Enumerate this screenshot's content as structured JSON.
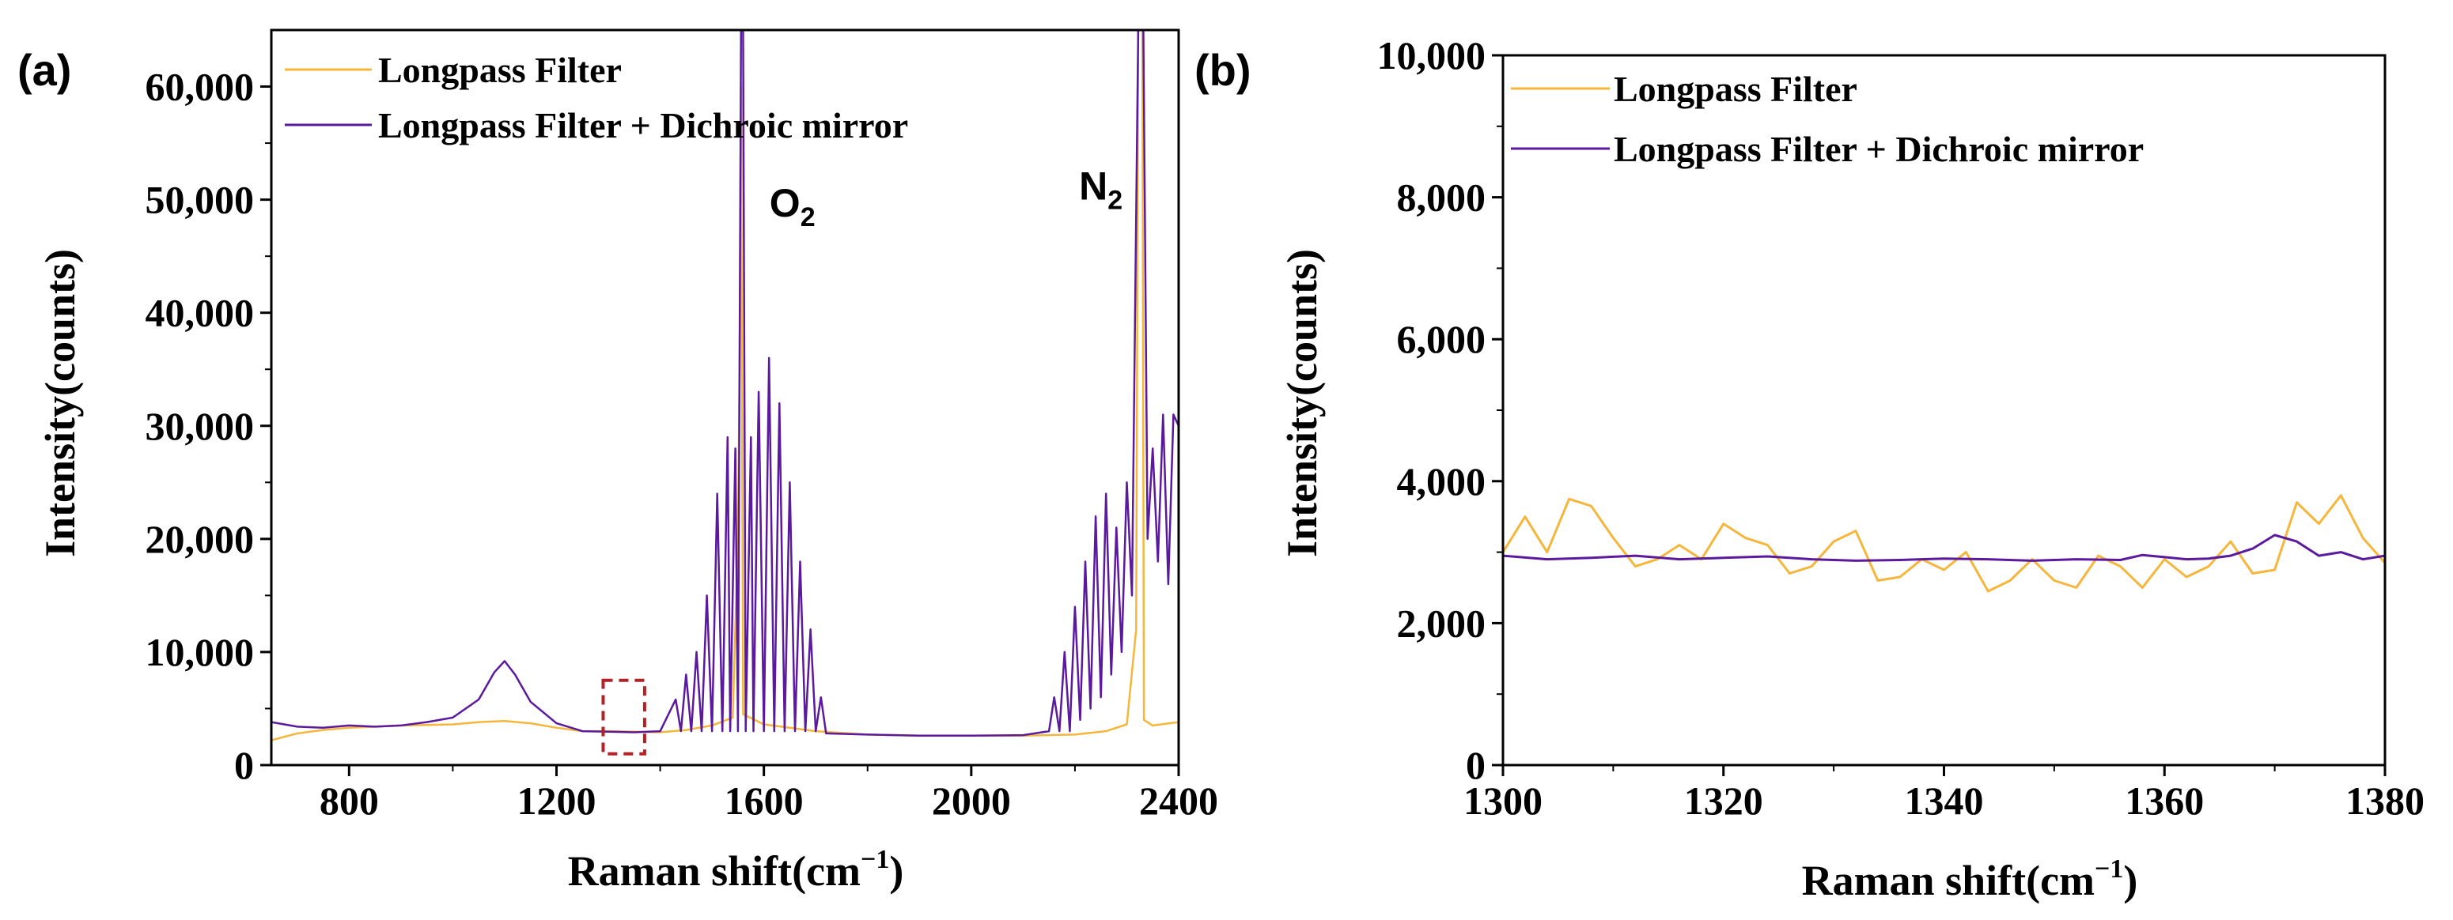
{
  "colors": {
    "longpass": "#F5B63B",
    "dichroic": "#5B1A9E",
    "highlight": "#B32025"
  },
  "chart_data": [
    {
      "type": "line",
      "panel_label": "(a)",
      "xlabel": "Raman shift(cm",
      "xlabel_sup": "−1",
      "xlabel_close": ")",
      "ylabel": "Intensity(counts)",
      "xlim": [
        650,
        2400
      ],
      "ylim": [
        0,
        65000
      ],
      "xticks": [
        800,
        1200,
        1600,
        2000,
        2400
      ],
      "xtick_labels": [
        "800",
        "1200",
        "1600",
        "2000",
        "2400"
      ],
      "yticks": [
        0,
        10000,
        20000,
        30000,
        40000,
        50000,
        60000
      ],
      "ytick_labels": [
        "0",
        "10,000",
        "20,000",
        "30,000",
        "40,000",
        "50,000",
        "60,000"
      ],
      "annotations": [
        {
          "text": "O",
          "sub": "2",
          "x": 1655,
          "y": 48500
        },
        {
          "text": "N",
          "sub": "2",
          "x": 2250,
          "y": 50000
        }
      ],
      "highlight_box": {
        "x0": 1290,
        "x1": 1370,
        "y0": 1000,
        "y1": 7500
      },
      "series": [
        {
          "name": "Longpass Filter",
          "color_key": "longpass",
          "points": [
            [
              650,
              2200
            ],
            [
              700,
              2800
            ],
            [
              750,
              3100
            ],
            [
              800,
              3300
            ],
            [
              850,
              3400
            ],
            [
              900,
              3500
            ],
            [
              950,
              3550
            ],
            [
              1000,
              3600
            ],
            [
              1050,
              3800
            ],
            [
              1100,
              3900
            ],
            [
              1150,
              3700
            ],
            [
              1200,
              3300
            ],
            [
              1250,
              3000
            ],
            [
              1300,
              3000
            ],
            [
              1350,
              2950
            ],
            [
              1400,
              2900
            ],
            [
              1450,
              3100
            ],
            [
              1500,
              3500
            ],
            [
              1540,
              4200
            ],
            [
              1550,
              20000
            ],
            [
              1553,
              35000
            ],
            [
              1556,
              60000
            ],
            [
              1560,
              4500
            ],
            [
              1600,
              3600
            ],
            [
              1650,
              3300
            ],
            [
              1700,
              3000
            ],
            [
              1800,
              2700
            ],
            [
              1900,
              2600
            ],
            [
              2000,
              2600
            ],
            [
              2100,
              2600
            ],
            [
              2200,
              2700
            ],
            [
              2260,
              3000
            ],
            [
              2300,
              3600
            ],
            [
              2318,
              12000
            ],
            [
              2322,
              65000
            ],
            [
              2330,
              65000
            ],
            [
              2333,
              4000
            ],
            [
              2350,
              3500
            ],
            [
              2400,
              3800
            ]
          ]
        },
        {
          "name": "Longpass Filter + Dichroic mirror",
          "color_key": "dichroic",
          "points": [
            [
              650,
              3800
            ],
            [
              700,
              3400
            ],
            [
              750,
              3300
            ],
            [
              800,
              3500
            ],
            [
              850,
              3400
            ],
            [
              900,
              3500
            ],
            [
              950,
              3800
            ],
            [
              1000,
              4200
            ],
            [
              1050,
              5800
            ],
            [
              1080,
              8200
            ],
            [
              1100,
              9200
            ],
            [
              1120,
              8000
            ],
            [
              1150,
              5600
            ],
            [
              1200,
              3700
            ],
            [
              1250,
              3000
            ],
            [
              1300,
              2950
            ],
            [
              1350,
              2900
            ],
            [
              1400,
              3000
            ],
            [
              1430,
              5800
            ],
            [
              1440,
              3000
            ],
            [
              1450,
              8000
            ],
            [
              1460,
              3000
            ],
            [
              1470,
              10000
            ],
            [
              1480,
              3000
            ],
            [
              1490,
              15000
            ],
            [
              1500,
              3000
            ],
            [
              1510,
              24000
            ],
            [
              1520,
              3000
            ],
            [
              1530,
              29000
            ],
            [
              1535,
              3000
            ],
            [
              1545,
              28000
            ],
            [
              1550,
              3000
            ],
            [
              1556,
              65000
            ],
            [
              1560,
              65000
            ],
            [
              1565,
              3000
            ],
            [
              1575,
              29000
            ],
            [
              1580,
              3000
            ],
            [
              1590,
              33000
            ],
            [
              1600,
              3000
            ],
            [
              1610,
              36000
            ],
            [
              1620,
              3000
            ],
            [
              1630,
              32000
            ],
            [
              1640,
              3000
            ],
            [
              1650,
              25000
            ],
            [
              1660,
              3000
            ],
            [
              1670,
              18000
            ],
            [
              1680,
              3000
            ],
            [
              1690,
              12000
            ],
            [
              1700,
              3000
            ],
            [
              1710,
              6000
            ],
            [
              1720,
              2800
            ],
            [
              1800,
              2700
            ],
            [
              1900,
              2600
            ],
            [
              2000,
              2600
            ],
            [
              2100,
              2650
            ],
            [
              2150,
              3000
            ],
            [
              2160,
              6000
            ],
            [
              2170,
              3000
            ],
            [
              2180,
              10000
            ],
            [
              2190,
              3000
            ],
            [
              2200,
              14000
            ],
            [
              2210,
              4000
            ],
            [
              2220,
              18000
            ],
            [
              2230,
              5000
            ],
            [
              2240,
              22000
            ],
            [
              2250,
              6000
            ],
            [
              2260,
              24000
            ],
            [
              2270,
              8000
            ],
            [
              2280,
              21000
            ],
            [
              2290,
              10000
            ],
            [
              2300,
              25000
            ],
            [
              2310,
              15000
            ],
            [
              2322,
              65000
            ],
            [
              2332,
              65000
            ],
            [
              2340,
              20000
            ],
            [
              2350,
              28000
            ],
            [
              2360,
              18000
            ],
            [
              2370,
              31000
            ],
            [
              2380,
              16000
            ],
            [
              2390,
              31000
            ],
            [
              2400,
              30000
            ]
          ]
        }
      ]
    },
    {
      "type": "line",
      "panel_label": "(b)",
      "xlabel": "Raman shift(cm",
      "xlabel_sup": "−1",
      "xlabel_close": ")",
      "ylabel": "Intensity(counts)",
      "xlim": [
        1300,
        1380
      ],
      "ylim": [
        0,
        10000
      ],
      "xticks": [
        1300,
        1320,
        1340,
        1360,
        1380
      ],
      "xtick_labels": [
        "1300",
        "1320",
        "1340",
        "1360",
        "1380"
      ],
      "yticks": [
        0,
        2000,
        4000,
        6000,
        8000,
        10000
      ],
      "ytick_labels": [
        "0",
        "2,000",
        "4,000",
        "6,000",
        "8,000",
        "10,000"
      ],
      "series": [
        {
          "name": "Longpass Filter",
          "color_key": "longpass",
          "points": [
            [
              1300,
              3000
            ],
            [
              1302,
              3500
            ],
            [
              1304,
              3000
            ],
            [
              1306,
              3750
            ],
            [
              1308,
              3650
            ],
            [
              1310,
              3200
            ],
            [
              1312,
              2800
            ],
            [
              1314,
              2900
            ],
            [
              1316,
              3100
            ],
            [
              1318,
              2900
            ],
            [
              1320,
              3400
            ],
            [
              1322,
              3200
            ],
            [
              1324,
              3100
            ],
            [
              1326,
              2700
            ],
            [
              1328,
              2800
            ],
            [
              1330,
              3150
            ],
            [
              1332,
              3300
            ],
            [
              1334,
              2600
            ],
            [
              1336,
              2650
            ],
            [
              1338,
              2900
            ],
            [
              1340,
              2750
            ],
            [
              1342,
              3000
            ],
            [
              1344,
              2450
            ],
            [
              1346,
              2600
            ],
            [
              1348,
              2900
            ],
            [
              1350,
              2600
            ],
            [
              1352,
              2500
            ],
            [
              1354,
              2950
            ],
            [
              1356,
              2800
            ],
            [
              1358,
              2500
            ],
            [
              1360,
              2900
            ],
            [
              1362,
              2650
            ],
            [
              1364,
              2800
            ],
            [
              1366,
              3150
            ],
            [
              1368,
              2700
            ],
            [
              1370,
              2750
            ],
            [
              1372,
              3700
            ],
            [
              1374,
              3400
            ],
            [
              1376,
              3800
            ],
            [
              1378,
              3200
            ],
            [
              1380,
              2850
            ]
          ]
        },
        {
          "name": "Longpass Filter + Dichroic mirror",
          "color_key": "dichroic",
          "points": [
            [
              1300,
              2950
            ],
            [
              1304,
              2900
            ],
            [
              1308,
              2920
            ],
            [
              1312,
              2950
            ],
            [
              1316,
              2900
            ],
            [
              1320,
              2920
            ],
            [
              1324,
              2940
            ],
            [
              1328,
              2900
            ],
            [
              1332,
              2880
            ],
            [
              1336,
              2890
            ],
            [
              1340,
              2910
            ],
            [
              1344,
              2900
            ],
            [
              1348,
              2880
            ],
            [
              1352,
              2900
            ],
            [
              1356,
              2890
            ],
            [
              1358,
              2960
            ],
            [
              1360,
              2930
            ],
            [
              1362,
              2900
            ],
            [
              1364,
              2910
            ],
            [
              1366,
              2950
            ],
            [
              1368,
              3050
            ],
            [
              1370,
              3240
            ],
            [
              1372,
              3150
            ],
            [
              1374,
              2950
            ],
            [
              1376,
              3000
            ],
            [
              1378,
              2900
            ],
            [
              1380,
              2950
            ]
          ]
        }
      ]
    }
  ]
}
